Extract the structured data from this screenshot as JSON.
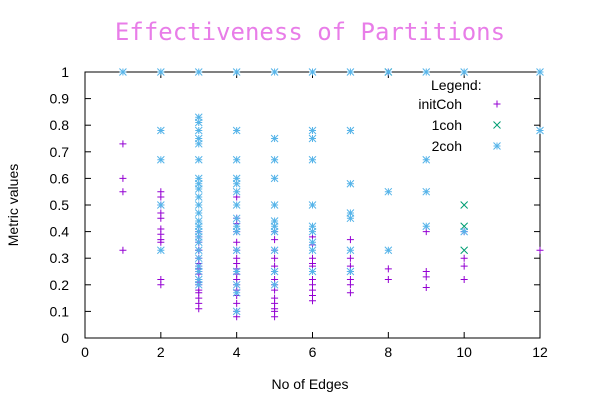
{
  "chart_data": {
    "type": "scatter",
    "title": "Effectiveness of Partitions",
    "xlabel": "No of Edges",
    "ylabel": "Metric values",
    "xlim": [
      0,
      12
    ],
    "ylim": [
      0,
      1
    ],
    "xticks": [
      "0",
      "2",
      "4",
      "6",
      "8",
      "10",
      "12"
    ],
    "xtick_values": [
      0,
      2,
      4,
      6,
      8,
      10,
      12
    ],
    "yticks": [
      "0",
      "0.1",
      "0.2",
      "0.3",
      "0.4",
      "0.5",
      "0.6",
      "0.7",
      "0.8",
      "0.9",
      "1"
    ],
    "ytick_values": [
      0,
      0.1,
      0.2,
      0.3,
      0.4,
      0.5,
      0.6,
      0.7,
      0.8,
      0.9,
      1
    ],
    "grid": false,
    "legend_title": "Legend:",
    "legend_position": "top-right",
    "title_color": "#e87de8",
    "series": [
      {
        "name": "initCoh",
        "marker": "plus",
        "color": "#9400d3",
        "x": [
          1,
          1,
          1,
          1,
          2,
          2,
          2,
          2,
          2,
          2,
          2,
          2,
          2,
          2,
          2,
          3,
          3,
          3,
          3,
          3,
          3,
          3,
          3,
          3,
          3,
          3,
          3,
          3,
          3,
          3,
          3,
          3,
          3,
          3,
          4,
          4,
          4,
          4,
          4,
          4,
          4,
          4,
          4,
          4,
          4,
          4,
          4,
          4,
          4,
          4,
          4,
          5,
          5,
          5,
          5,
          5,
          5,
          5,
          5,
          5,
          5,
          5,
          5,
          5,
          5,
          6,
          6,
          6,
          6,
          6,
          6,
          6,
          6,
          6,
          6,
          6,
          7,
          7,
          7,
          7,
          7,
          7,
          7,
          8,
          8,
          8,
          9,
          9,
          9,
          9,
          10,
          10,
          10,
          10,
          12
        ],
        "y": [
          0.73,
          0.6,
          0.55,
          0.33,
          0.55,
          0.53,
          0.5,
          0.47,
          0.41,
          0.39,
          0.37,
          0.36,
          0.22,
          0.2,
          0.45,
          0.4,
          0.38,
          0.36,
          0.33,
          0.3,
          0.28,
          0.26,
          0.24,
          0.22,
          0.2,
          0.18,
          0.17,
          0.15,
          0.13,
          0.11,
          0.33,
          0.25,
          0.21,
          0.27,
          0.53,
          0.45,
          0.43,
          0.4,
          0.36,
          0.33,
          0.3,
          0.28,
          0.26,
          0.24,
          0.22,
          0.2,
          0.18,
          0.16,
          0.13,
          0.1,
          0.08,
          0.4,
          0.37,
          0.33,
          0.3,
          0.27,
          0.25,
          0.22,
          0.2,
          0.18,
          0.15,
          0.13,
          0.11,
          0.1,
          0.08,
          0.38,
          0.35,
          0.3,
          0.27,
          0.25,
          0.22,
          0.2,
          0.18,
          0.16,
          0.14,
          0.28,
          0.37,
          0.3,
          0.27,
          0.25,
          0.22,
          0.2,
          0.17,
          1.0,
          0.26,
          0.22,
          0.4,
          0.25,
          0.23,
          0.19,
          0.4,
          0.3,
          0.27,
          0.22,
          0.33
        ]
      },
      {
        "name": "1coh",
        "marker": "cross",
        "color": "#009e73",
        "x": [
          8,
          10,
          10,
          10
        ],
        "y": [
          1.0,
          0.5,
          0.42,
          0.33
        ]
      },
      {
        "name": "2coh",
        "marker": "star",
        "color": "#56b4e9",
        "x": [
          1,
          2,
          2,
          2,
          2,
          2,
          3,
          3,
          3,
          3,
          3,
          3,
          3,
          3,
          3,
          3,
          3,
          3,
          3,
          3,
          3,
          3,
          3,
          3,
          3,
          3,
          3,
          3,
          3,
          3,
          4,
          4,
          4,
          4,
          4,
          4,
          4,
          4,
          4,
          4,
          4,
          4,
          4,
          4,
          4,
          5,
          5,
          5,
          5,
          5,
          5,
          5,
          5,
          5,
          5,
          5,
          6,
          6,
          6,
          6,
          6,
          6,
          6,
          6,
          6,
          6,
          7,
          7,
          7,
          7,
          7,
          7,
          7,
          8,
          8,
          8,
          9,
          9,
          9,
          9,
          10,
          10,
          12,
          12
        ],
        "y": [
          1.0,
          1.0,
          0.78,
          0.67,
          0.5,
          0.33,
          1.0,
          0.83,
          0.81,
          0.78,
          0.75,
          0.73,
          0.67,
          0.6,
          0.58,
          0.56,
          0.53,
          0.5,
          0.47,
          0.44,
          0.42,
          0.4,
          0.38,
          0.36,
          0.33,
          0.3,
          0.27,
          0.25,
          0.22,
          0.2,
          1.0,
          0.78,
          0.67,
          0.6,
          0.58,
          0.55,
          0.5,
          0.45,
          0.42,
          0.4,
          0.33,
          0.25,
          0.2,
          0.17,
          0.1,
          1.0,
          0.75,
          0.67,
          0.6,
          0.5,
          0.44,
          0.42,
          0.4,
          0.33,
          0.25,
          0.2,
          1.0,
          0.78,
          0.75,
          0.67,
          0.5,
          0.42,
          0.4,
          0.36,
          0.33,
          0.25,
          1.0,
          0.78,
          0.58,
          0.47,
          0.45,
          0.33,
          0.25,
          1.0,
          0.55,
          0.33,
          1.0,
          0.67,
          0.55,
          0.42,
          1.0,
          0.4,
          1.0,
          0.78
        ]
      }
    ]
  }
}
